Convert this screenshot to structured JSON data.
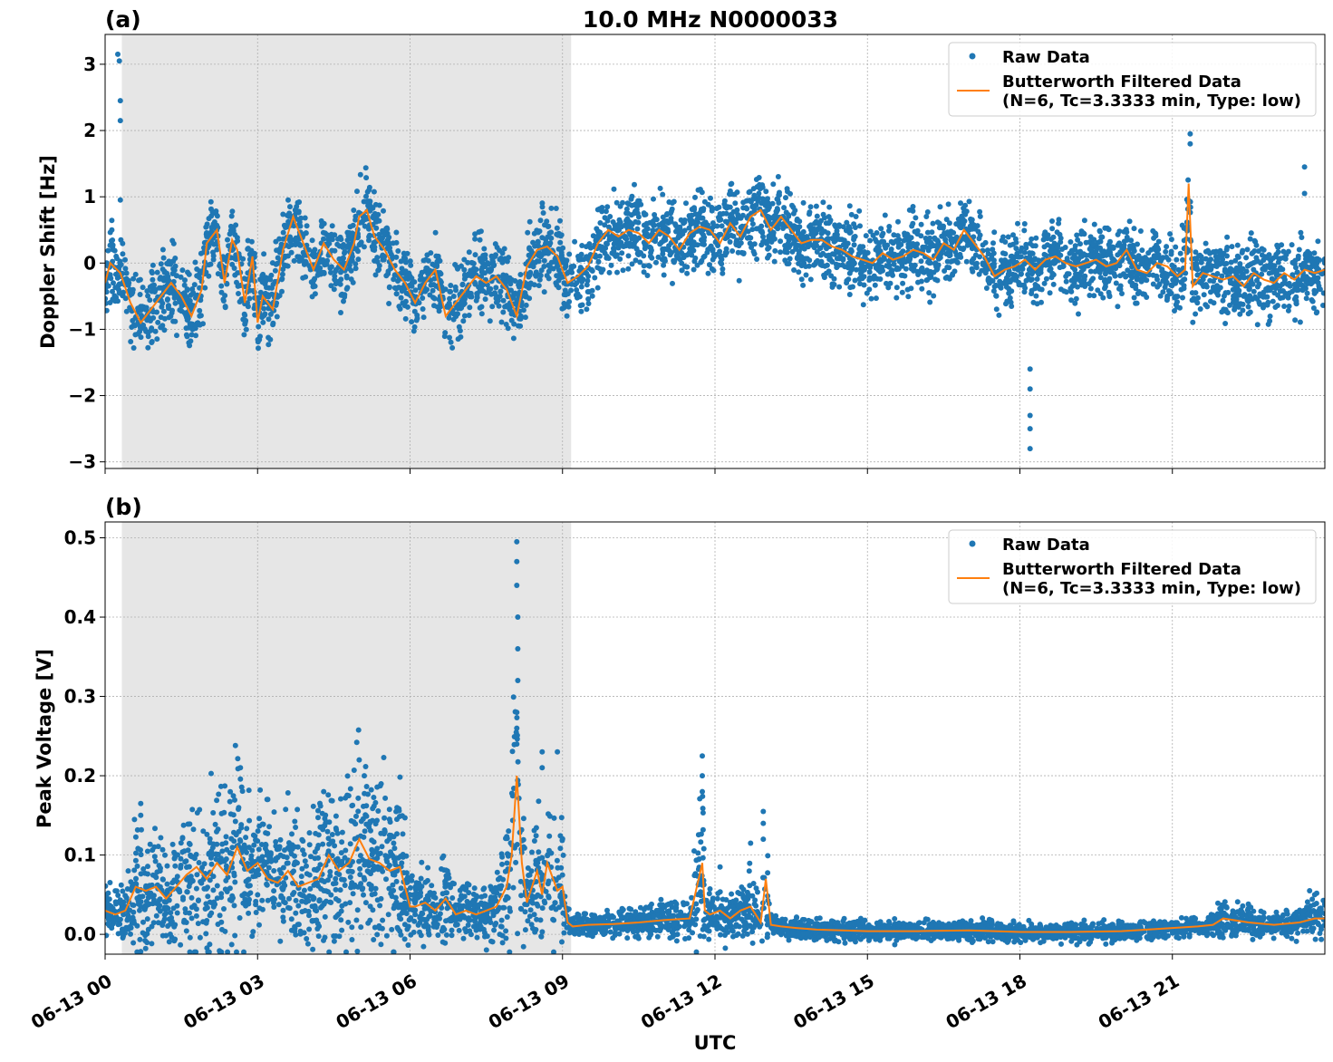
{
  "figure": {
    "title": "10.0 MHz N0000033",
    "xlabel": "UTC",
    "x_tick_labels": [
      "06-13 00",
      "06-13 03",
      "06-13 06",
      "06-13 09",
      "06-13 12",
      "06-13 15",
      "06-13 18",
      "06-13 21"
    ],
    "colors": {
      "raw": "#1f77b4",
      "filtered": "#ff7f0e",
      "shade": "#e6e6e6",
      "grid": "#b0b0b0"
    }
  },
  "chart_data": [
    {
      "type": "scatter",
      "panel_label": "(a)",
      "title": "10.0 MHz N0000033",
      "xlabel": "",
      "ylabel": "Doppler Shift [Hz]",
      "x_unit": "hours UTC since 06-13 00",
      "xlim": [
        0,
        24
      ],
      "ylim": [
        -3.1,
        3.45
      ],
      "y_ticks": [
        -3,
        -2,
        -1,
        0,
        1,
        2,
        3
      ],
      "y_tick_labels": [
        "−3",
        "−2",
        "−1",
        "0",
        "1",
        "2",
        "3"
      ],
      "x_ticks": [
        0,
        3,
        6,
        9,
        12,
        15,
        18,
        21
      ],
      "shaded_interval": [
        0.33,
        9.17
      ],
      "grid": true,
      "legend": {
        "position": "top-right",
        "entries": [
          "Raw Data",
          "Butterworth Filtered Data",
          "(N=6, Tc=3.3333 min, Type: low)"
        ]
      },
      "series": [
        {
          "name": "Butterworth Filtered Data (N=6, Tc=3.3333 min, Type: low)",
          "kind": "line",
          "x": [
            0,
            0.1,
            0.3,
            0.5,
            0.7,
            0.9,
            1.1,
            1.3,
            1.5,
            1.7,
            1.9,
            2.0,
            2.2,
            2.35,
            2.5,
            2.6,
            2.75,
            2.9,
            3.0,
            3.1,
            3.3,
            3.5,
            3.7,
            3.9,
            4.1,
            4.3,
            4.5,
            4.7,
            4.9,
            5.0,
            5.15,
            5.3,
            5.5,
            5.7,
            5.9,
            6.1,
            6.3,
            6.5,
            6.7,
            6.9,
            7.1,
            7.3,
            7.5,
            7.7,
            7.9,
            8.1,
            8.3,
            8.5,
            8.7,
            8.9,
            9.1,
            9.3,
            9.5,
            9.7,
            9.9,
            10.1,
            10.3,
            10.5,
            10.7,
            10.9,
            11.1,
            11.3,
            11.5,
            11.7,
            11.9,
            12.1,
            12.3,
            12.5,
            12.7,
            12.9,
            13.1,
            13.3,
            13.5,
            13.7,
            13.9,
            14.1,
            14.3,
            14.5,
            14.7,
            14.9,
            15.1,
            15.3,
            15.5,
            15.7,
            15.9,
            16.1,
            16.3,
            16.5,
            16.7,
            16.9,
            17.1,
            17.3,
            17.5,
            17.7,
            17.9,
            18.1,
            18.3,
            18.5,
            18.7,
            18.9,
            19.1,
            19.3,
            19.5,
            19.7,
            19.9,
            20.1,
            20.3,
            20.5,
            20.7,
            20.9,
            21.1,
            21.25,
            21.32,
            21.4,
            21.6,
            21.8,
            22.0,
            22.2,
            22.4,
            22.6,
            22.8,
            23.0,
            23.2,
            23.4,
            23.6,
            23.8,
            24.0
          ],
          "y": [
            -0.3,
            0.0,
            -0.15,
            -0.6,
            -0.9,
            -0.7,
            -0.5,
            -0.3,
            -0.5,
            -0.8,
            -0.4,
            0.3,
            0.5,
            -0.3,
            0.35,
            0.2,
            -0.6,
            0.1,
            -0.9,
            -0.5,
            -0.7,
            0.2,
            0.7,
            0.3,
            -0.1,
            0.3,
            0.05,
            -0.1,
            0.3,
            0.7,
            0.8,
            0.4,
            0.2,
            -0.1,
            -0.3,
            -0.6,
            -0.3,
            -0.1,
            -0.8,
            -0.6,
            -0.4,
            -0.2,
            -0.3,
            -0.2,
            -0.4,
            -0.8,
            -0.05,
            0.2,
            0.25,
            0.1,
            -0.3,
            -0.2,
            -0.05,
            0.3,
            0.5,
            0.4,
            0.5,
            0.45,
            0.3,
            0.5,
            0.4,
            0.2,
            0.45,
            0.55,
            0.5,
            0.3,
            0.6,
            0.4,
            0.7,
            0.8,
            0.5,
            0.7,
            0.5,
            0.3,
            0.35,
            0.35,
            0.25,
            0.2,
            0.1,
            0.05,
            0.0,
            0.15,
            0.05,
            0.1,
            0.2,
            0.15,
            0.05,
            0.3,
            0.2,
            0.5,
            0.3,
            0.1,
            -0.2,
            -0.1,
            -0.05,
            0.05,
            -0.1,
            0.05,
            0.1,
            0.0,
            -0.05,
            0.0,
            0.05,
            -0.05,
            0.0,
            0.2,
            -0.1,
            -0.15,
            0.0,
            -0.05,
            -0.2,
            -0.1,
            1.2,
            -0.35,
            -0.15,
            -0.2,
            -0.25,
            -0.2,
            -0.35,
            -0.15,
            -0.25,
            -0.3,
            -0.15,
            -0.25,
            -0.1,
            -0.15,
            -0.1
          ]
        },
        {
          "name": "Raw Data",
          "kind": "points",
          "spread": 0.45,
          "outliers": [
            [
              0.25,
              3.15
            ],
            [
              0.28,
              3.05
            ],
            [
              0.3,
              2.45
            ],
            [
              0.3,
              2.15
            ],
            [
              0.3,
              0.95
            ],
            [
              18.2,
              -1.9
            ],
            [
              18.2,
              -2.3
            ],
            [
              18.2,
              -2.5
            ],
            [
              18.2,
              -2.8
            ],
            [
              18.2,
              -1.6
            ],
            [
              21.35,
              1.95
            ],
            [
              21.35,
              1.8
            ],
            [
              23.6,
              1.45
            ],
            [
              23.6,
              1.05
            ]
          ]
        }
      ]
    },
    {
      "type": "scatter",
      "panel_label": "(b)",
      "title": "",
      "xlabel": "UTC",
      "ylabel": "Peak Voltage [V]",
      "x_unit": "hours UTC since 06-13 00",
      "xlim": [
        0,
        24
      ],
      "ylim": [
        -0.025,
        0.52
      ],
      "y_ticks": [
        0.0,
        0.1,
        0.2,
        0.3,
        0.4,
        0.5
      ],
      "y_tick_labels": [
        "0.0",
        "0.1",
        "0.2",
        "0.3",
        "0.4",
        "0.5"
      ],
      "x_ticks": [
        0,
        3,
        6,
        9,
        12,
        15,
        18,
        21
      ],
      "shaded_interval": [
        0.33,
        9.17
      ],
      "grid": true,
      "legend": {
        "position": "top-right",
        "entries": [
          "Raw Data",
          "Butterworth Filtered Data",
          "(N=6, Tc=3.3333 min, Type: low)"
        ]
      },
      "series": [
        {
          "name": "Butterworth Filtered Data (N=6, Tc=3.3333 min, Type: low)",
          "kind": "line",
          "x": [
            0,
            0.2,
            0.4,
            0.6,
            0.8,
            1.0,
            1.2,
            1.4,
            1.6,
            1.8,
            2.0,
            2.2,
            2.4,
            2.6,
            2.8,
            3.0,
            3.2,
            3.4,
            3.6,
            3.8,
            4.0,
            4.2,
            4.4,
            4.6,
            4.8,
            5.0,
            5.2,
            5.4,
            5.6,
            5.8,
            6.0,
            6.1,
            6.3,
            6.5,
            6.7,
            6.9,
            7.1,
            7.3,
            7.5,
            7.7,
            7.9,
            8.0,
            8.1,
            8.2,
            8.3,
            8.5,
            8.6,
            8.7,
            8.9,
            9.0,
            9.1,
            9.2,
            9.5,
            10.0,
            10.5,
            11.0,
            11.5,
            11.75,
            11.8,
            11.9,
            12.1,
            12.3,
            12.5,
            12.7,
            12.9,
            13.0,
            13.1,
            13.3,
            13.6,
            14.0,
            14.5,
            15.0,
            16.0,
            17.0,
            18.0,
            19.0,
            20.0,
            20.5,
            21.0,
            21.5,
            21.8,
            22.0,
            22.5,
            23.0,
            23.5,
            23.8,
            24.0
          ],
          "y": [
            0.03,
            0.025,
            0.03,
            0.06,
            0.055,
            0.06,
            0.045,
            0.06,
            0.075,
            0.085,
            0.07,
            0.09,
            0.075,
            0.11,
            0.08,
            0.09,
            0.07,
            0.065,
            0.08,
            0.06,
            0.065,
            0.07,
            0.1,
            0.08,
            0.09,
            0.12,
            0.095,
            0.09,
            0.08,
            0.085,
            0.035,
            0.035,
            0.04,
            0.03,
            0.045,
            0.025,
            0.03,
            0.025,
            0.03,
            0.035,
            0.06,
            0.1,
            0.2,
            0.09,
            0.04,
            0.08,
            0.05,
            0.09,
            0.055,
            0.06,
            0.015,
            0.01,
            0.012,
            0.013,
            0.015,
            0.018,
            0.02,
            0.09,
            0.03,
            0.025,
            0.03,
            0.02,
            0.03,
            0.035,
            0.015,
            0.07,
            0.012,
            0.01,
            0.008,
            0.006,
            0.005,
            0.004,
            0.004,
            0.005,
            0.003,
            0.003,
            0.004,
            0.006,
            0.008,
            0.01,
            0.012,
            0.02,
            0.015,
            0.012,
            0.015,
            0.02,
            0.02
          ]
        },
        {
          "name": "Raw Data",
          "kind": "points",
          "spread": 0.6,
          "outliers": [
            [
              8.1,
              0.495
            ],
            [
              8.1,
              0.47
            ],
            [
              8.1,
              0.44
            ],
            [
              8.12,
              0.4
            ],
            [
              8.12,
              0.36
            ],
            [
              8.12,
              0.32
            ],
            [
              8.1,
              0.28
            ],
            [
              8.1,
              0.26
            ],
            [
              8.1,
              0.24
            ],
            [
              8.6,
              0.23
            ],
            [
              8.9,
              0.23
            ],
            [
              8.6,
              0.21
            ],
            [
              11.75,
              0.225
            ],
            [
              11.75,
              0.2
            ],
            [
              11.75,
              0.18
            ],
            [
              12.95,
              0.155
            ],
            [
              12.95,
              0.14
            ],
            [
              12.95,
              0.12
            ],
            [
              12.7,
              0.115
            ],
            [
              12.1,
              0.085
            ],
            [
              0.7,
              0.165
            ],
            [
              0.7,
              0.15
            ],
            [
              5.0,
              0.22
            ],
            [
              5.1,
              0.2
            ],
            [
              3.2,
              0.17
            ],
            [
              4.3,
              0.18
            ],
            [
              23.7,
              0.055
            ],
            [
              23.8,
              0.05
            ]
          ]
        }
      ]
    }
  ]
}
